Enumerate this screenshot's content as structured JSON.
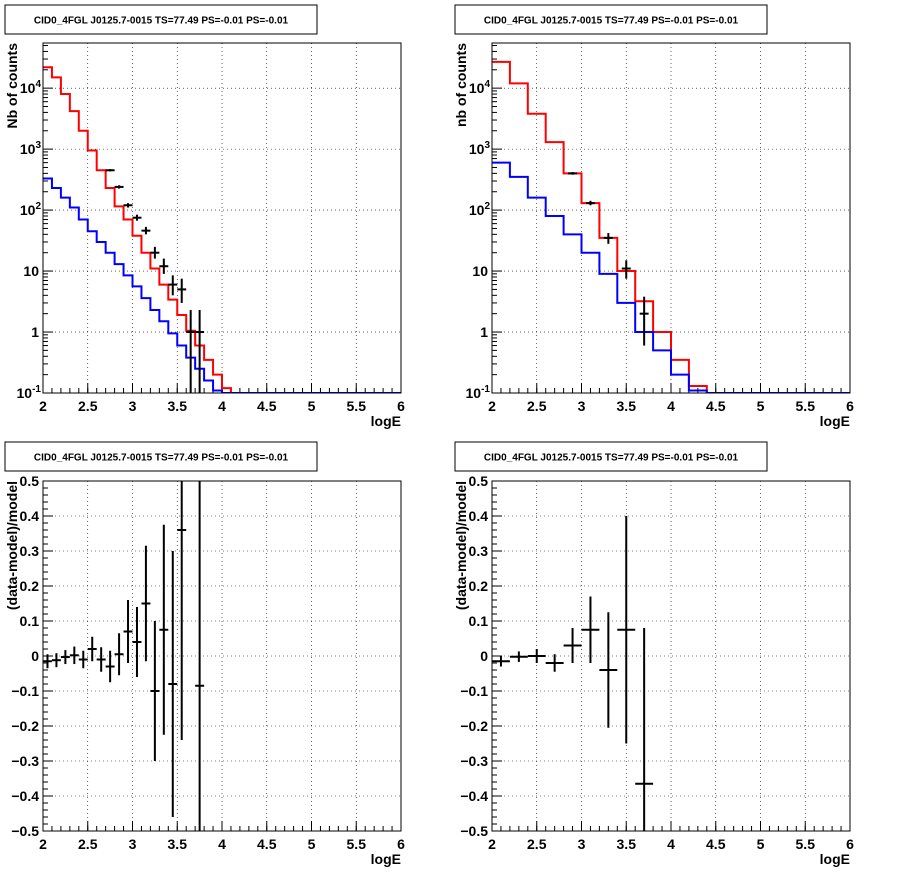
{
  "chart_data": [
    {
      "type": "histogram",
      "title": "CID0_4FGL J0125.7-0015 TS=77.49 PS=-0.01 PS=-0.01",
      "xlabel": "logE",
      "ylabel": "Nb of counts",
      "xlim": [
        2,
        6
      ],
      "ylim": [
        0.1,
        55000
      ],
      "yscale": "log",
      "grid": true,
      "x_ticks": [
        "2",
        "2.5",
        "3",
        "3.5",
        "4",
        "4.5",
        "5",
        "5.5",
        "6"
      ],
      "y_ticks": [
        "10^-1",
        "1",
        "10",
        "10^2",
        "10^3",
        "10^4"
      ],
      "bin_edges": [
        2.0,
        2.1,
        2.2,
        2.3,
        2.4,
        2.5,
        2.6,
        2.7,
        2.8,
        2.9,
        3.0,
        3.1,
        3.2,
        3.3,
        3.4,
        3.5,
        3.6,
        3.7,
        3.8,
        3.9,
        4.0,
        4.1,
        4.2,
        4.3,
        4.4,
        4.5,
        4.6,
        4.7,
        4.8,
        4.9,
        5.0,
        5.1,
        5.2,
        5.3,
        5.4,
        5.5,
        5.6,
        5.7,
        5.8,
        5.9,
        6.0
      ],
      "series": [
        {
          "color": "#ff0000",
          "style": "step",
          "values": [
            22000,
            15000,
            8000,
            4200,
            2000,
            950,
            450,
            230,
            115,
            70,
            38,
            20,
            11,
            6,
            3.4,
            1.9,
            1.05,
            0.6,
            0.35,
            0.2,
            0.12,
            0.09,
            0.09,
            0.09,
            0.09,
            0.09,
            0.09,
            0.09,
            0.09,
            0.09,
            0.09,
            0.09,
            0.09,
            0.09,
            0.09,
            0.09,
            0.09,
            0.09,
            0.09,
            0.09
          ]
        },
        {
          "color": "#0000ff",
          "style": "step",
          "values": [
            330,
            230,
            160,
            110,
            70,
            45,
            30,
            20,
            13,
            8.5,
            5.6,
            3.6,
            2.3,
            1.5,
            0.95,
            0.6,
            0.38,
            0.25,
            0.16,
            0.11,
            0.09,
            0.09,
            0.09,
            0.09,
            0.09,
            0.09,
            0.09,
            0.09,
            0.09,
            0.09,
            0.09,
            0.09,
            0.09,
            0.09,
            0.09,
            0.09,
            0.09,
            0.09,
            0.09,
            0.09
          ]
        },
        {
          "color": "#000000",
          "style": "points",
          "x": [
            2.75,
            2.85,
            2.95,
            3.05,
            3.15,
            3.25,
            3.35,
            3.45,
            3.55,
            3.65,
            3.75
          ],
          "y": [
            450,
            240,
            120,
            75,
            46,
            20,
            12,
            6,
            5,
            1,
            1
          ],
          "y_low": [
            430,
            225,
            110,
            67,
            40,
            16,
            9,
            4,
            3,
            0.05,
            0.05
          ],
          "y_high": [
            470,
            255,
            130,
            84,
            53,
            25,
            16,
            8.5,
            7.5,
            2.3,
            2.3
          ]
        }
      ]
    },
    {
      "type": "histogram",
      "title": "CID0_4FGL J0125.7-0015 TS=77.49 PS=-0.01 PS=-0.01",
      "xlabel": "logE",
      "ylabel": "nb of counts",
      "xlim": [
        2,
        6
      ],
      "ylim": [
        0.1,
        55000
      ],
      "yscale": "log",
      "grid": true,
      "x_ticks": [
        "2",
        "2.5",
        "3",
        "3.5",
        "4",
        "4.5",
        "5",
        "5.5",
        "6"
      ],
      "y_ticks": [
        "10^-1",
        "1",
        "10",
        "10^2",
        "10^3",
        "10^4"
      ],
      "bin_edges": [
        2.0,
        2.2,
        2.4,
        2.6,
        2.8,
        3.0,
        3.2,
        3.4,
        3.6,
        3.8,
        4.0,
        4.2,
        4.4,
        4.6,
        4.8,
        5.0,
        5.2,
        5.4,
        5.6,
        5.8,
        6.0
      ],
      "series": [
        {
          "color": "#ff0000",
          "style": "step",
          "values": [
            27000,
            12000,
            3800,
            1300,
            400,
            130,
            35,
            10,
            3.2,
            1,
            0.35,
            0.13,
            0.09,
            0.09,
            0.09,
            0.09,
            0.09,
            0.09,
            0.09,
            0.09
          ]
        },
        {
          "color": "#0000ff",
          "style": "step",
          "values": [
            600,
            350,
            160,
            80,
            40,
            20,
            9,
            3,
            1,
            0.5,
            0.2,
            0.11,
            0.09,
            0.09,
            0.09,
            0.09,
            0.09,
            0.09,
            0.09,
            0.09
          ]
        },
        {
          "color": "#000000",
          "style": "points",
          "x": [
            2.9,
            3.1,
            3.3,
            3.5,
            3.7
          ],
          "y": [
            400,
            130,
            35,
            11,
            2
          ],
          "y_low": [
            380,
            120,
            28,
            7.5,
            0.6
          ],
          "y_high": [
            420,
            142,
            42,
            15,
            3.8
          ]
        }
      ]
    },
    {
      "type": "scatter",
      "title": "CID0_4FGL J0125.7-0015 TS=77.49 PS=-0.01 PS=-0.01",
      "xlabel": "logE",
      "ylabel": "(data-model)/model",
      "xlim": [
        2,
        6
      ],
      "ylim": [
        -0.5,
        0.5
      ],
      "grid": true,
      "x_ticks": [
        "2",
        "2.5",
        "3",
        "3.5",
        "4",
        "4.5",
        "5",
        "5.5",
        "6"
      ],
      "y_ticks": [
        "−0.5",
        "−0.4",
        "−0.3",
        "−0.2",
        "−0.1",
        "0",
        "0.1",
        "0.2",
        "0.3",
        "0.4",
        "0.5"
      ],
      "series": [
        {
          "color": "#000000",
          "style": "points",
          "x_halfwidth": 0.05,
          "x": [
            2.05,
            2.15,
            2.25,
            2.35,
            2.45,
            2.55,
            2.65,
            2.75,
            2.85,
            2.95,
            3.05,
            3.15,
            3.25,
            3.35,
            3.45,
            3.55,
            3.75
          ],
          "y": [
            -0.015,
            -0.012,
            -0.003,
            0.002,
            -0.01,
            0.02,
            -0.01,
            -0.03,
            0.005,
            0.07,
            0.04,
            0.15,
            -0.1,
            0.075,
            -0.08,
            0.36,
            -0.085
          ],
          "y_err": [
            0.02,
            0.02,
            0.02,
            0.025,
            0.025,
            0.035,
            0.035,
            0.045,
            0.06,
            0.09,
            0.1,
            0.165,
            0.2,
            0.3,
            0.38,
            0.6,
            0.9
          ]
        }
      ]
    },
    {
      "type": "scatter",
      "title": "CID0_4FGL J0125.7-0015 TS=77.49 PS=-0.01 PS=-0.01",
      "xlabel": "logE",
      "ylabel": "(data-model)/model",
      "xlim": [
        2,
        6
      ],
      "ylim": [
        -0.5,
        0.5
      ],
      "grid": true,
      "x_ticks": [
        "2",
        "2.5",
        "3",
        "3.5",
        "4",
        "4.5",
        "5",
        "5.5",
        "6"
      ],
      "y_ticks": [
        "−0.5",
        "−0.4",
        "−0.3",
        "−0.2",
        "−0.1",
        "0",
        "0.1",
        "0.2",
        "0.3",
        "0.4",
        "0.5"
      ],
      "series": [
        {
          "color": "#000000",
          "style": "points",
          "x_halfwidth": 0.1,
          "x": [
            2.1,
            2.3,
            2.5,
            2.7,
            2.9,
            3.1,
            3.3,
            3.5,
            3.7
          ],
          "y": [
            -0.015,
            -0.002,
            0.0,
            -0.02,
            0.03,
            0.075,
            -0.04,
            0.075,
            -0.365
          ],
          "y_err": [
            0.015,
            0.015,
            0.02,
            0.025,
            0.05,
            0.095,
            0.165,
            0.325,
            0.445
          ]
        }
      ]
    }
  ]
}
